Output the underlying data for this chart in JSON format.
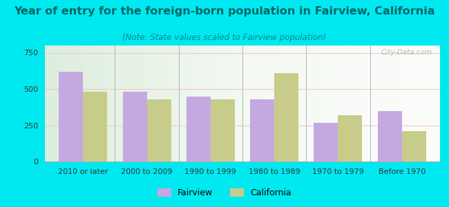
{
  "title": "Year of entry for the foreign-born population in Fairview, California",
  "subtitle": "(Note: State values scaled to Fairview population)",
  "categories": [
    "2010 or later",
    "2000 to 2009",
    "1990 to 1999",
    "1980 to 1989",
    "1970 to 1979",
    "Before 1970"
  ],
  "fairview_values": [
    620,
    480,
    450,
    430,
    265,
    350
  ],
  "california_values": [
    480,
    430,
    430,
    610,
    320,
    210
  ],
  "fairview_color": "#c4a8e0",
  "california_color": "#c8cc8a",
  "background_color": "#00e8f0",
  "title_color": "#006666",
  "subtitle_color": "#008888",
  "title_fontsize": 11.5,
  "subtitle_fontsize": 8.5,
  "yticks": [
    0,
    250,
    500,
    750
  ],
  "ylim": [
    0,
    800
  ],
  "bar_width": 0.38,
  "watermark": "City-Data.com",
  "grid_color": "#f0c8c8",
  "separator_color": "#b0b0b0",
  "tick_label_fontsize": 8,
  "legend_label_fairview": "Fairview",
  "legend_label_california": "California"
}
